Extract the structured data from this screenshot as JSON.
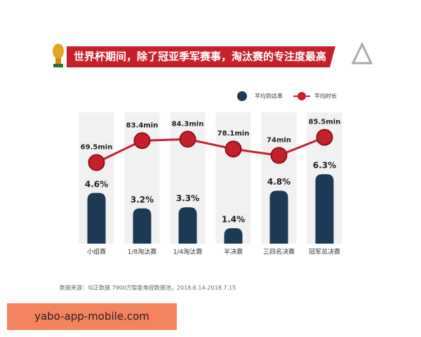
{
  "chart_data": {
    "type": "bar",
    "title": "世界杯期间，除了冠亚季军赛事，淘汰赛的专注度最高",
    "categories": [
      "小组赛",
      "1/8淘汰赛",
      "1/4淘汰赛",
      "半决赛",
      "三四名决赛",
      "冠军总决赛"
    ],
    "series": [
      {
        "name": "平均到达率",
        "color": "#1c3a56",
        "values": [
          4.6,
          3.2,
          3.3,
          1.4,
          4.8,
          6.3
        ],
        "value_labels": [
          "4.6%",
          "3.2%",
          "3.3%",
          "1.4%",
          "4.8%",
          "6.3%"
        ]
      },
      {
        "name": "平均时长",
        "type": "line",
        "axis": "y2",
        "color": "#c6202b",
        "values": [
          69.5,
          83.4,
          84.3,
          78.1,
          74,
          85.5
        ],
        "value_labels": [
          "69.5min",
          "83.4min",
          "84.3min",
          "78.1min",
          "74min",
          "85.5min"
        ]
      }
    ],
    "ylim": [
      0,
      10
    ],
    "y2lim": [
      18,
      88
    ],
    "source": "数据来源：勾正数据 7900万智能电视数据池，2018.6.14-2018.7.15"
  },
  "watermark": "yabo-app-mobile.com"
}
